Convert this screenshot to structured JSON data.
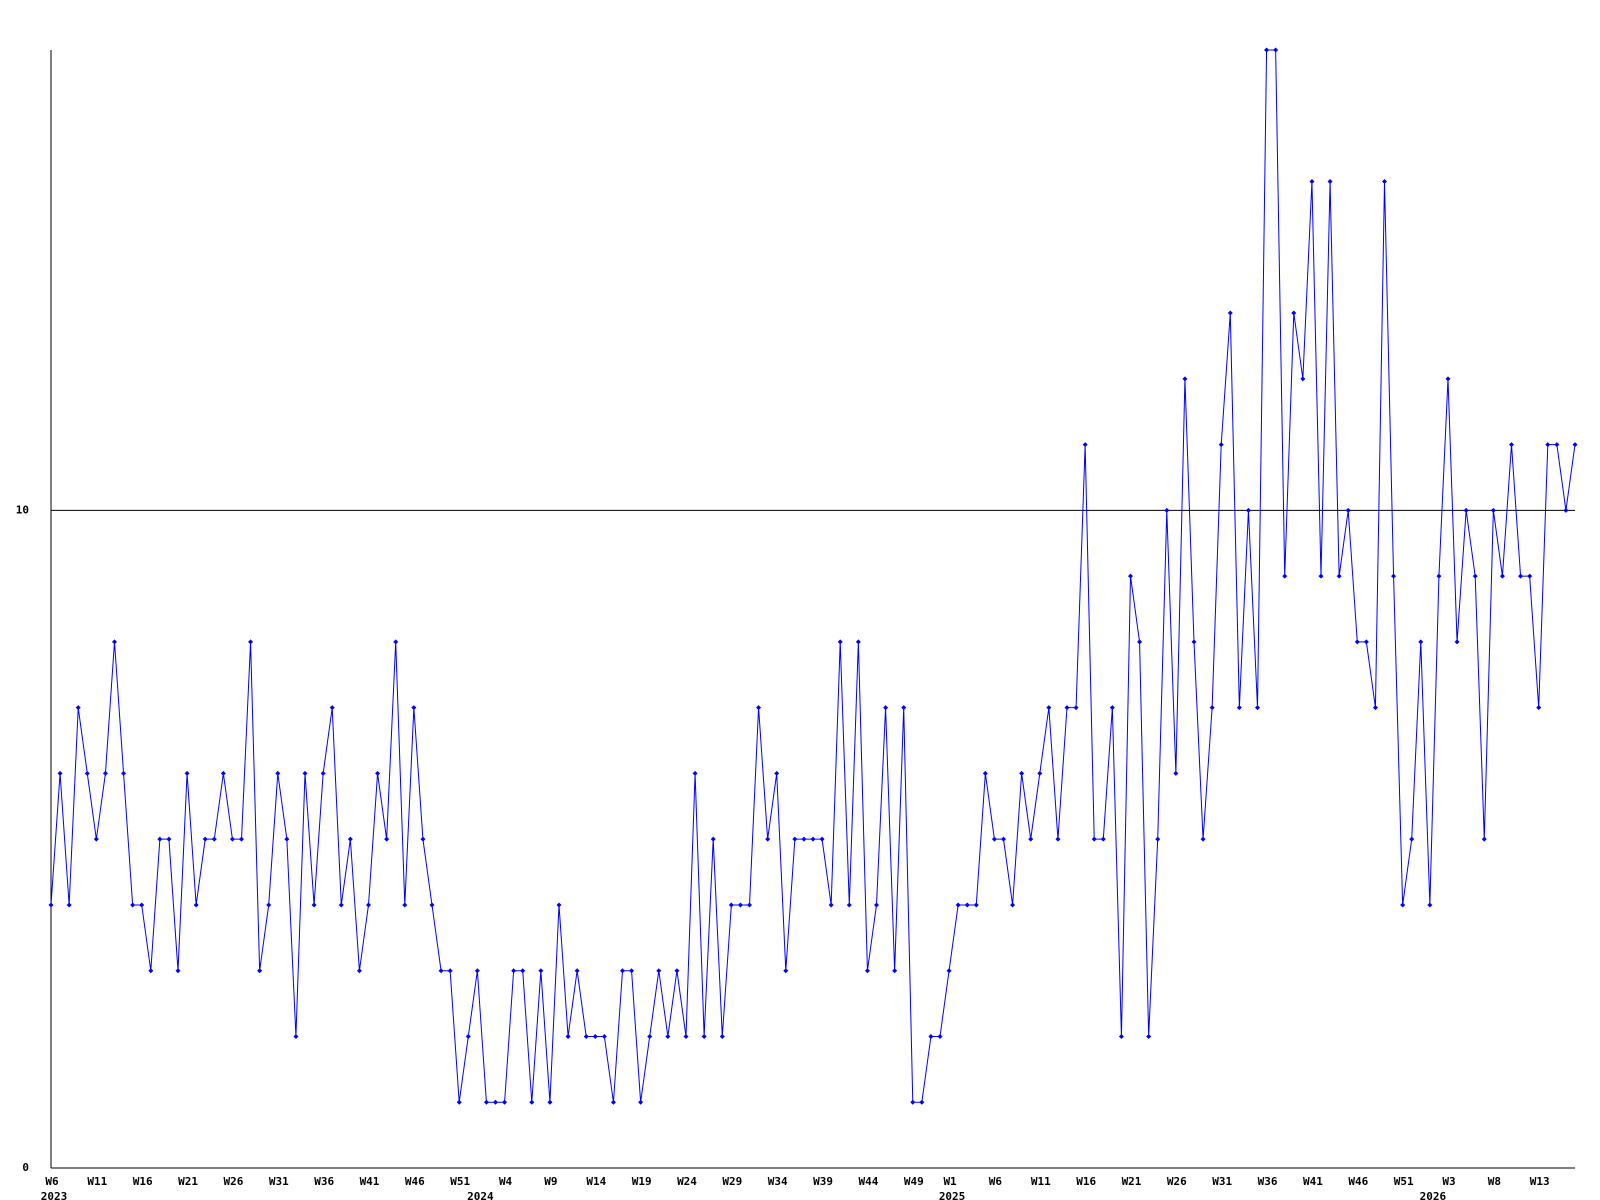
{
  "chart_data": {
    "type": "line",
    "categories": [
      "W6",
      null,
      null,
      null,
      null,
      "W11",
      null,
      null,
      null,
      null,
      "W16",
      null,
      null,
      null,
      null,
      "W21",
      null,
      null,
      null,
      null,
      "W26",
      null,
      null,
      null,
      null,
      "W31",
      null,
      null,
      null,
      null,
      "W36",
      null,
      null,
      null,
      null,
      "W41",
      null,
      null,
      null,
      null,
      "W46",
      null,
      null,
      null,
      null,
      "W51",
      null,
      null,
      null,
      null,
      "W4",
      null,
      null,
      null,
      null,
      "W9",
      null,
      null,
      null,
      null,
      "W14",
      null,
      null,
      null,
      null,
      "W19",
      null,
      null,
      null,
      null,
      "W24",
      null,
      null,
      null,
      null,
      "W29",
      null,
      null,
      null,
      null,
      "W34",
      null,
      null,
      null,
      null,
      "W39",
      null,
      null,
      null,
      null,
      "W44",
      null,
      null,
      null,
      null,
      "W49",
      null,
      null,
      null,
      "W1",
      null,
      null,
      null,
      null,
      "W6",
      null,
      null,
      null,
      null,
      "W11",
      null,
      null,
      null,
      null,
      "W16",
      null,
      null,
      null,
      null,
      "W21",
      null,
      null,
      null,
      null,
      "W26",
      null,
      null,
      null,
      null,
      "W31",
      null,
      null,
      null,
      null,
      "W36",
      null,
      null,
      null,
      null,
      "W41",
      null,
      null,
      null,
      null,
      "W46",
      null,
      null,
      null,
      null,
      "W51",
      null,
      null,
      null,
      null,
      "W3",
      null,
      null,
      null,
      null,
      "W8",
      null,
      null,
      null,
      null,
      "W13",
      null,
      null,
      null,
      null
    ],
    "x_group_labels": [
      "2023",
      null,
      null,
      null,
      null,
      null,
      null,
      null,
      null,
      null,
      null,
      null,
      null,
      null,
      null,
      null,
      null,
      null,
      null,
      null,
      null,
      null,
      null,
      null,
      null,
      null,
      null,
      null,
      null,
      null,
      null,
      null,
      null,
      null,
      null,
      null,
      null,
      null,
      null,
      null,
      null,
      null,
      null,
      null,
      null,
      null,
      null,
      "2024",
      null,
      null,
      null,
      null,
      null,
      null,
      null,
      null,
      null,
      null,
      null,
      null,
      null,
      null,
      null,
      null,
      null,
      null,
      null,
      null,
      null,
      null,
      null,
      null,
      null,
      null,
      null,
      null,
      null,
      null,
      null,
      null,
      null,
      null,
      null,
      null,
      null,
      null,
      null,
      null,
      null,
      null,
      null,
      null,
      null,
      null,
      null,
      null,
      null,
      null,
      null,
      "2025",
      null,
      null,
      null,
      null,
      null,
      null,
      null,
      null,
      null,
      null,
      null,
      null,
      null,
      null,
      null,
      null,
      null,
      null,
      null,
      null,
      null,
      null,
      null,
      null,
      null,
      null,
      null,
      null,
      null,
      null,
      null,
      null,
      null,
      null,
      null,
      null,
      null,
      null,
      null,
      null,
      null,
      null,
      null,
      null,
      null,
      null,
      null,
      null,
      null,
      null,
      null,
      null,
      "2026",
      null,
      null,
      null,
      null,
      null,
      null,
      null,
      null,
      null,
      null,
      null,
      null,
      null,
      null,
      null,
      null
    ],
    "values": [
      4,
      6,
      4,
      7,
      6,
      5,
      6,
      8,
      6,
      4,
      4,
      3,
      5,
      5,
      3,
      6,
      4,
      5,
      5,
      6,
      5,
      5,
      8,
      3,
      4,
      6,
      5,
      2,
      6,
      4,
      6,
      7,
      4,
      5,
      3,
      4,
      6,
      5,
      8,
      4,
      7,
      5,
      4,
      3,
      3,
      1,
      2,
      3,
      1,
      1,
      1,
      3,
      3,
      1,
      3,
      1,
      4,
      2,
      3,
      2,
      2,
      2,
      1,
      3,
      3,
      1,
      2,
      3,
      2,
      3,
      2,
      6,
      2,
      5,
      2,
      4,
      4,
      4,
      7,
      5,
      6,
      3,
      5,
      5,
      5,
      5,
      4,
      8,
      4,
      8,
      3,
      4,
      7,
      3,
      7,
      1,
      1,
      2,
      2,
      3,
      4,
      4,
      4,
      6,
      5,
      5,
      4,
      6,
      5,
      6,
      7,
      5,
      7,
      7,
      11,
      5,
      5,
      7,
      2,
      9,
      8,
      2,
      5,
      10,
      6,
      12,
      8,
      5,
      7,
      11,
      13,
      7,
      10,
      7,
      17,
      17,
      9,
      13,
      12,
      15,
      9,
      15,
      9,
      10,
      8,
      8,
      7,
      15,
      9,
      4,
      5,
      8,
      4,
      9,
      12,
      8,
      10,
      9,
      5,
      10,
      9,
      11,
      9,
      9,
      7,
      11,
      11,
      10,
      11
    ],
    "color": "#0000ff",
    "ylim": [
      0,
      17
    ],
    "yticks": [
      0,
      10
    ],
    "grid": true
  }
}
